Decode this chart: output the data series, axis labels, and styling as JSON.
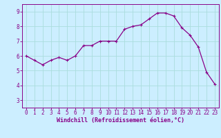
{
  "x": [
    0,
    1,
    2,
    3,
    4,
    5,
    6,
    7,
    8,
    9,
    10,
    11,
    12,
    13,
    14,
    15,
    16,
    17,
    18,
    19,
    20,
    21,
    22,
    23
  ],
  "y": [
    6.0,
    5.7,
    5.4,
    5.7,
    5.9,
    5.7,
    6.0,
    6.7,
    6.7,
    7.0,
    7.0,
    7.0,
    7.8,
    8.0,
    8.1,
    8.5,
    8.9,
    8.9,
    8.7,
    7.9,
    7.4,
    6.6,
    4.9,
    4.1
  ],
  "line_color": "#880088",
  "marker": "+",
  "bg_color": "#cceeff",
  "grid_color": "#aadddd",
  "xlabel": "Windchill (Refroidissement éolien,°C)",
  "xlim": [
    -0.5,
    23.5
  ],
  "ylim": [
    2.5,
    9.5
  ],
  "yticks": [
    3,
    4,
    5,
    6,
    7,
    8,
    9
  ],
  "xticks": [
    0,
    1,
    2,
    3,
    4,
    5,
    6,
    7,
    8,
    9,
    10,
    11,
    12,
    13,
    14,
    15,
    16,
    17,
    18,
    19,
    20,
    21,
    22,
    23
  ],
  "label_color": "#880088",
  "tick_color": "#880088",
  "spine_color": "#880088",
  "font_size_tick": 5.5,
  "font_size_label": 6.0,
  "marker_size": 3,
  "line_width": 0.9
}
